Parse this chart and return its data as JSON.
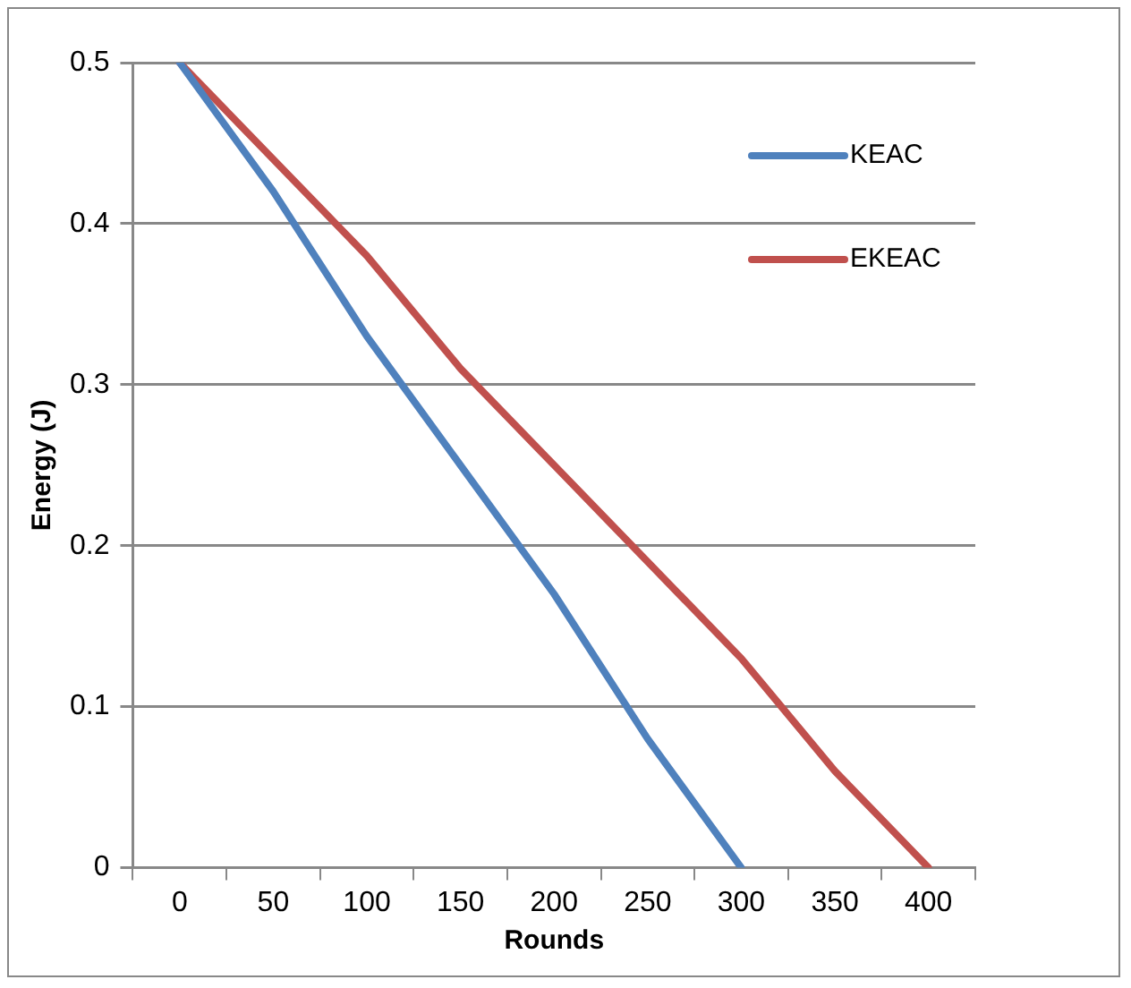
{
  "chart_data": {
    "type": "line",
    "xlabel": "Rounds",
    "ylabel": "Energy (J)",
    "categories": [
      "0",
      "50",
      "100",
      "150",
      "200",
      "250",
      "300",
      "350",
      "400"
    ],
    "series": [
      {
        "name": "KEAC",
        "color": "#4f81bd",
        "values": [
          0.5,
          0.42,
          0.33,
          0.25,
          0.17,
          0.08,
          0,
          null,
          null
        ]
      },
      {
        "name": "EKEAC",
        "color": "#c0504d",
        "values": [
          0.5,
          0.44,
          0.38,
          0.31,
          0.25,
          0.19,
          0.13,
          0.06,
          0
        ]
      }
    ],
    "ylim": [
      0,
      0.5
    ],
    "yticks": [
      0,
      0.1,
      0.2,
      0.3,
      0.4,
      0.5
    ],
    "grid": "y",
    "legend": "top right",
    "marker": "none",
    "line_style": "solid"
  }
}
